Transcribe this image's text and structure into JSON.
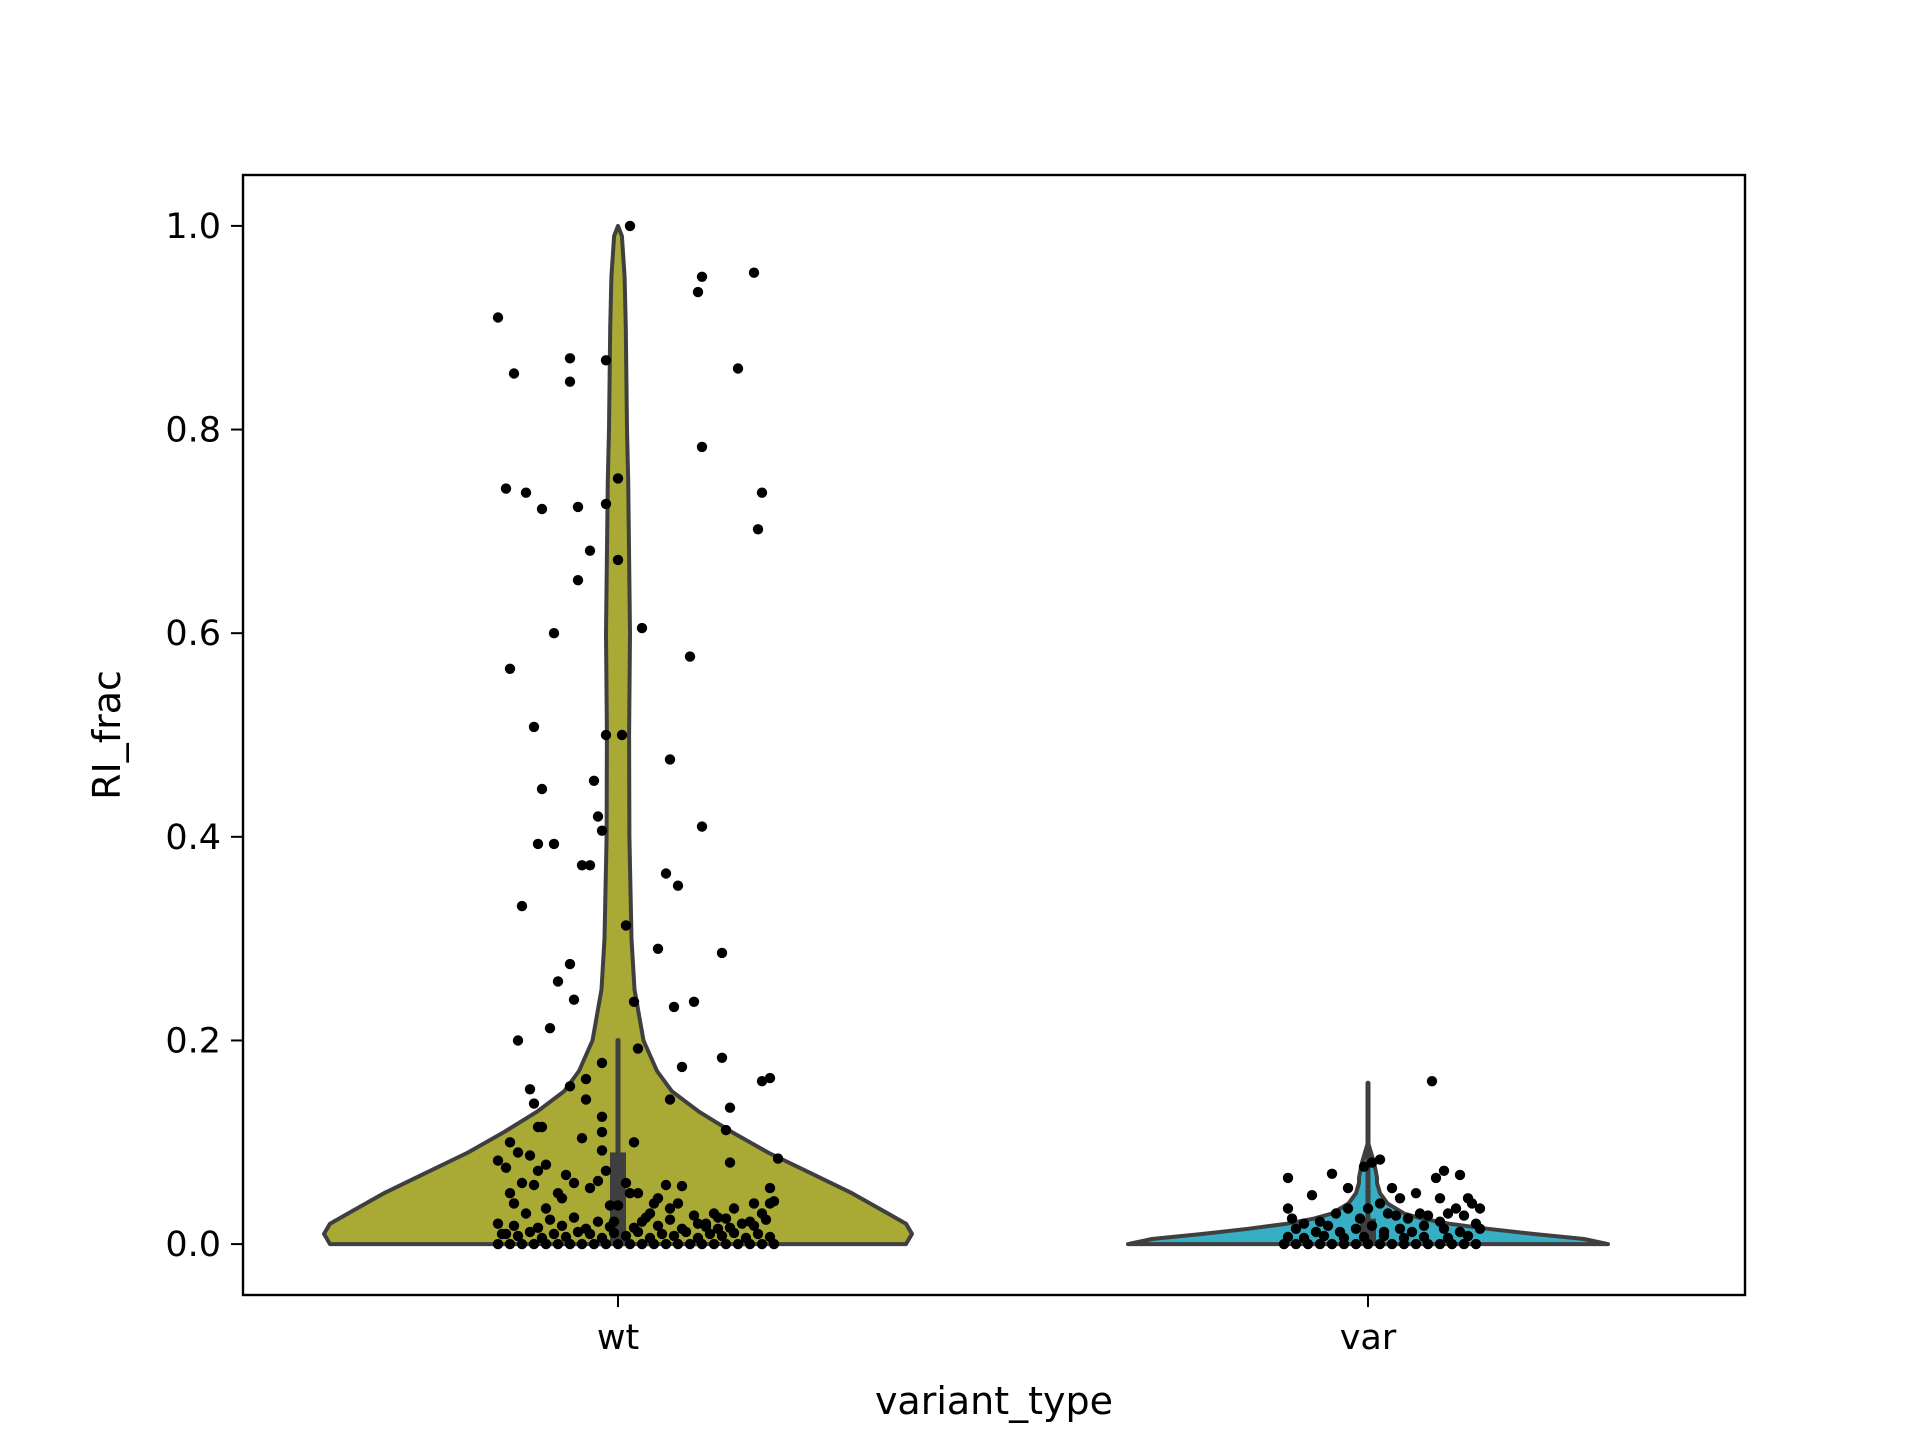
{
  "chart_data": {
    "type": "violin",
    "title": "",
    "xlabel": "variant_type",
    "ylabel": "RI_frac",
    "ylim": [
      -0.05,
      1.05
    ],
    "yticks": [
      0.0,
      0.2,
      0.4,
      0.6,
      0.8,
      1.0
    ],
    "ytick_labels": [
      "0.0",
      "0.2",
      "0.4",
      "0.6",
      "0.8",
      "1.0"
    ],
    "grid": false,
    "legend": "none",
    "categories": [
      "wt",
      "var"
    ],
    "series": [
      {
        "category": "wt",
        "color": "#a9a935",
        "density_profile": [
          [
            0.0,
            0.96
          ],
          [
            0.01,
            0.98
          ],
          [
            0.02,
            0.96
          ],
          [
            0.03,
            0.9
          ],
          [
            0.05,
            0.78
          ],
          [
            0.07,
            0.64
          ],
          [
            0.09,
            0.5
          ],
          [
            0.11,
            0.38
          ],
          [
            0.13,
            0.27
          ],
          [
            0.15,
            0.18
          ],
          [
            0.17,
            0.13
          ],
          [
            0.2,
            0.085
          ],
          [
            0.25,
            0.055
          ],
          [
            0.3,
            0.045
          ],
          [
            0.4,
            0.038
          ],
          [
            0.5,
            0.037
          ],
          [
            0.6,
            0.04
          ],
          [
            0.65,
            0.038
          ],
          [
            0.7,
            0.036
          ],
          [
            0.75,
            0.034
          ],
          [
            0.8,
            0.03
          ],
          [
            0.85,
            0.028
          ],
          [
            0.9,
            0.026
          ],
          [
            0.95,
            0.022
          ],
          [
            0.99,
            0.013
          ],
          [
            1.0,
            0.0
          ]
        ],
        "box": {
          "q1": 0.0,
          "median": 0.02,
          "q3": 0.09,
          "whisker_low": 0.0,
          "whisker_high": 0.2
        },
        "points": [
          [
            -0.3,
            0.91
          ],
          [
            -0.26,
            0.855
          ],
          [
            -0.28,
            0.742
          ],
          [
            -0.23,
            0.738
          ],
          [
            -0.19,
            0.722
          ],
          [
            -0.16,
            0.6
          ],
          [
            -0.27,
            0.565
          ],
          [
            -0.21,
            0.508
          ],
          [
            -0.19,
            0.447
          ],
          [
            -0.2,
            0.393
          ],
          [
            -0.16,
            0.393
          ],
          [
            -0.24,
            0.332
          ],
          [
            -0.15,
            0.258
          ],
          [
            -0.12,
            0.275
          ],
          [
            -0.11,
            0.24
          ],
          [
            -0.17,
            0.212
          ],
          [
            -0.25,
            0.2
          ],
          [
            -0.22,
            0.152
          ],
          [
            -0.21,
            0.138
          ],
          [
            -0.2,
            0.115
          ],
          [
            -0.19,
            0.115
          ],
          [
            -0.27,
            0.1
          ],
          [
            -0.3,
            0.082
          ],
          [
            -0.28,
            0.075
          ],
          [
            -0.25,
            0.09
          ],
          [
            -0.22,
            0.087
          ],
          [
            -0.2,
            0.072
          ],
          [
            -0.18,
            0.078
          ],
          [
            -0.24,
            0.06
          ],
          [
            -0.21,
            0.058
          ],
          [
            -0.27,
            0.05
          ],
          [
            -0.3,
            0.02
          ],
          [
            -0.29,
            0.01
          ],
          [
            -0.26,
            0.04
          ],
          [
            -0.23,
            0.03
          ],
          [
            -0.18,
            0.035
          ],
          [
            -0.15,
            0.05
          ],
          [
            -0.13,
            0.068
          ],
          [
            -0.11,
            0.06
          ],
          [
            -0.14,
            0.045
          ],
          [
            -0.12,
            0.155
          ],
          [
            -0.08,
            0.162
          ],
          [
            -0.08,
            0.142
          ],
          [
            -0.09,
            0.104
          ],
          [
            -0.07,
            0.055
          ],
          [
            -0.05,
            0.062
          ],
          [
            -0.04,
            0.092
          ],
          [
            -0.03,
            0.072
          ],
          [
            -0.02,
            0.038
          ],
          [
            -0.12,
            0.87
          ],
          [
            -0.12,
            0.847
          ],
          [
            -0.1,
            0.724
          ],
          [
            -0.1,
            0.652
          ],
          [
            -0.07,
            0.681
          ],
          [
            -0.06,
            0.455
          ],
          [
            -0.05,
            0.42
          ],
          [
            -0.09,
            0.372
          ],
          [
            -0.07,
            0.372
          ],
          [
            -0.04,
            0.406
          ],
          [
            -0.03,
            0.5
          ],
          [
            -0.03,
            0.868
          ],
          [
            -0.03,
            0.727
          ],
          [
            0.0,
            0.752
          ],
          [
            0.0,
            0.672
          ],
          [
            0.01,
            0.5
          ],
          [
            0.02,
            0.313
          ],
          [
            0.04,
            0.238
          ],
          [
            0.05,
            0.192
          ],
          [
            0.04,
            0.1
          ],
          [
            -0.04,
            0.178
          ],
          [
            -0.04,
            0.11
          ],
          [
            -0.04,
            0.125
          ],
          [
            0.03,
            1.0
          ],
          [
            0.06,
            0.605
          ],
          [
            0.1,
            0.29
          ],
          [
            0.12,
            0.364
          ],
          [
            0.13,
            0.476
          ],
          [
            0.15,
            0.352
          ],
          [
            0.14,
            0.233
          ],
          [
            0.13,
            0.142
          ],
          [
            0.16,
            0.174
          ],
          [
            0.18,
            0.577
          ],
          [
            0.21,
            0.41
          ],
          [
            0.21,
            0.783
          ],
          [
            0.21,
            0.95
          ],
          [
            0.2,
            0.935
          ],
          [
            0.19,
            0.238
          ],
          [
            0.26,
            0.286
          ],
          [
            0.26,
            0.183
          ],
          [
            0.28,
            0.134
          ],
          [
            0.27,
            0.112
          ],
          [
            0.28,
            0.08
          ],
          [
            0.3,
            0.86
          ],
          [
            0.34,
            0.954
          ],
          [
            0.35,
            0.702
          ],
          [
            0.36,
            0.738
          ],
          [
            0.36,
            0.16
          ],
          [
            0.38,
            0.163
          ],
          [
            0.4,
            0.084
          ],
          [
            0.38,
            0.055
          ],
          [
            0.38,
            0.04
          ],
          [
            0.34,
            0.04
          ],
          [
            0.31,
            0.02
          ],
          [
            0.27,
            0.025
          ],
          [
            0.24,
            0.03
          ],
          [
            0.2,
            0.02
          ],
          [
            0.15,
            0.04
          ],
          [
            0.12,
            0.058
          ],
          [
            0.1,
            0.045
          ],
          [
            0.08,
            0.03
          ],
          [
            0.06,
            0.022
          ],
          [
            0.03,
            0.05
          ],
          [
            0.0,
            0.038
          ],
          [
            -0.01,
            0.022
          ],
          [
            0.02,
            0.06
          ],
          [
            0.05,
            0.05
          ],
          [
            0.09,
            0.04
          ],
          [
            0.13,
            0.035
          ],
          [
            0.16,
            0.057
          ],
          [
            0.19,
            0.028
          ],
          [
            0.22,
            0.02
          ],
          [
            0.25,
            0.015
          ],
          [
            0.29,
            0.035
          ],
          [
            0.33,
            0.022
          ],
          [
            0.36,
            0.03
          ],
          [
            0.39,
            0.042
          ],
          [
            -0.3,
            0.0
          ],
          [
            -0.27,
            0.0
          ],
          [
            -0.24,
            0.0
          ],
          [
            -0.21,
            0.0
          ],
          [
            -0.18,
            0.0
          ],
          [
            -0.15,
            0.0
          ],
          [
            -0.12,
            0.0
          ],
          [
            -0.09,
            0.0
          ],
          [
            -0.06,
            0.0
          ],
          [
            -0.03,
            0.0
          ],
          [
            0.0,
            0.0
          ],
          [
            0.03,
            0.0
          ],
          [
            0.06,
            0.0
          ],
          [
            0.09,
            0.0
          ],
          [
            0.12,
            0.0
          ],
          [
            0.15,
            0.0
          ],
          [
            0.18,
            0.0
          ],
          [
            0.21,
            0.0
          ],
          [
            0.24,
            0.0
          ],
          [
            0.27,
            0.0
          ],
          [
            0.3,
            0.0
          ],
          [
            0.33,
            0.0
          ],
          [
            0.36,
            0.0
          ],
          [
            0.39,
            0.0
          ],
          [
            -0.28,
            0.01
          ],
          [
            -0.25,
            0.008
          ],
          [
            -0.22,
            0.012
          ],
          [
            -0.19,
            0.006
          ],
          [
            -0.16,
            0.01
          ],
          [
            -0.13,
            0.007
          ],
          [
            -0.1,
            0.012
          ],
          [
            -0.07,
            0.01
          ],
          [
            -0.04,
            0.006
          ],
          [
            -0.01,
            0.011
          ],
          [
            0.02,
            0.008
          ],
          [
            0.05,
            0.012
          ],
          [
            0.08,
            0.006
          ],
          [
            0.11,
            0.01
          ],
          [
            0.14,
            0.008
          ],
          [
            0.17,
            0.012
          ],
          [
            0.2,
            0.006
          ],
          [
            0.23,
            0.01
          ],
          [
            0.26,
            0.008
          ],
          [
            0.29,
            0.011
          ],
          [
            0.32,
            0.006
          ],
          [
            0.35,
            0.01
          ],
          [
            0.38,
            0.007
          ],
          [
            -0.26,
            0.018
          ],
          [
            -0.2,
            0.016
          ],
          [
            -0.14,
            0.018
          ],
          [
            -0.08,
            0.015
          ],
          [
            -0.02,
            0.017
          ],
          [
            0.04,
            0.016
          ],
          [
            0.1,
            0.018
          ],
          [
            0.16,
            0.015
          ],
          [
            0.22,
            0.017
          ],
          [
            0.28,
            0.016
          ],
          [
            0.34,
            0.018
          ],
          [
            -0.17,
            0.024
          ],
          [
            -0.11,
            0.026
          ],
          [
            -0.05,
            0.022
          ],
          [
            0.07,
            0.026
          ],
          [
            0.13,
            0.024
          ],
          [
            0.25,
            0.026
          ],
          [
            0.37,
            0.024
          ]
        ]
      },
      {
        "category": "var",
        "color": "#36afc4",
        "density_profile": [
          [
            0.0,
            0.8
          ],
          [
            0.005,
            0.72
          ],
          [
            0.01,
            0.55
          ],
          [
            0.015,
            0.4
          ],
          [
            0.02,
            0.27
          ],
          [
            0.025,
            0.18
          ],
          [
            0.03,
            0.12
          ],
          [
            0.04,
            0.065
          ],
          [
            0.05,
            0.04
          ],
          [
            0.06,
            0.03
          ],
          [
            0.065,
            0.03
          ],
          [
            0.07,
            0.027
          ],
          [
            0.08,
            0.02
          ],
          [
            0.09,
            0.01
          ],
          [
            0.1,
            0.0
          ]
        ],
        "box": {
          "q1": 0.0,
          "median": 0.01,
          "q3": 0.025,
          "whisker_low": 0.0,
          "whisker_high": 0.158
        },
        "points": [
          [
            -0.2,
            0.065
          ],
          [
            -0.14,
            0.048
          ],
          [
            -0.09,
            0.069
          ],
          [
            -0.05,
            0.055
          ],
          [
            -0.01,
            0.076
          ],
          [
            0.03,
            0.083
          ],
          [
            0.01,
            0.08
          ],
          [
            0.06,
            0.055
          ],
          [
            0.08,
            0.045
          ],
          [
            0.12,
            0.05
          ],
          [
            0.18,
            0.045
          ],
          [
            0.17,
            0.065
          ],
          [
            0.19,
            0.072
          ],
          [
            0.23,
            0.068
          ],
          [
            0.25,
            0.045
          ],
          [
            0.26,
            0.04
          ],
          [
            0.28,
            0.035
          ],
          [
            0.16,
            0.16
          ],
          [
            -0.2,
            0.035
          ],
          [
            -0.19,
            0.025
          ],
          [
            -0.16,
            0.02
          ],
          [
            -0.12,
            0.022
          ],
          [
            -0.08,
            0.03
          ],
          [
            -0.05,
            0.035
          ],
          [
            -0.02,
            0.025
          ],
          [
            0.0,
            0.035
          ],
          [
            0.03,
            0.04
          ],
          [
            0.05,
            0.03
          ],
          [
            0.07,
            0.028
          ],
          [
            0.1,
            0.025
          ],
          [
            0.13,
            0.03
          ],
          [
            0.15,
            0.028
          ],
          [
            0.18,
            0.022
          ],
          [
            0.2,
            0.03
          ],
          [
            0.22,
            0.035
          ],
          [
            0.24,
            0.028
          ],
          [
            0.27,
            0.02
          ],
          [
            -0.18,
            0.015
          ],
          [
            -0.13,
            0.012
          ],
          [
            -0.1,
            0.018
          ],
          [
            -0.07,
            0.012
          ],
          [
            -0.03,
            0.015
          ],
          [
            0.01,
            0.018
          ],
          [
            0.04,
            0.012
          ],
          [
            0.08,
            0.015
          ],
          [
            0.11,
            0.012
          ],
          [
            0.14,
            0.018
          ],
          [
            0.19,
            0.015
          ],
          [
            0.23,
            0.012
          ],
          [
            0.28,
            0.015
          ],
          [
            -0.21,
            0.0
          ],
          [
            -0.18,
            0.0
          ],
          [
            -0.15,
            0.0
          ],
          [
            -0.12,
            0.0
          ],
          [
            -0.09,
            0.0
          ],
          [
            -0.06,
            0.0
          ],
          [
            -0.03,
            0.0
          ],
          [
            0.0,
            0.0
          ],
          [
            0.03,
            0.0
          ],
          [
            0.06,
            0.0
          ],
          [
            0.09,
            0.0
          ],
          [
            0.12,
            0.0
          ],
          [
            0.15,
            0.0
          ],
          [
            0.18,
            0.0
          ],
          [
            0.21,
            0.0
          ],
          [
            0.24,
            0.0
          ],
          [
            0.27,
            0.0
          ],
          [
            -0.2,
            0.007
          ],
          [
            -0.16,
            0.006
          ],
          [
            -0.11,
            0.008
          ],
          [
            -0.06,
            0.006
          ],
          [
            -0.01,
            0.007
          ],
          [
            0.04,
            0.008
          ],
          [
            0.09,
            0.006
          ],
          [
            0.14,
            0.007
          ],
          [
            0.2,
            0.006
          ],
          [
            0.25,
            0.008
          ]
        ]
      }
    ]
  }
}
